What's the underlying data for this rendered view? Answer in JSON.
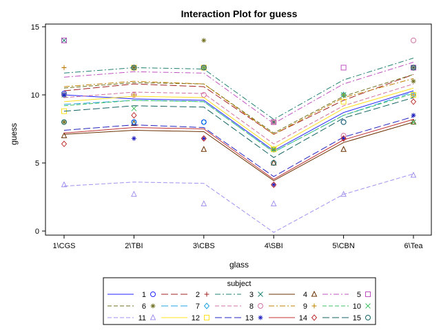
{
  "chart_data": {
    "type": "line",
    "title": "Interaction Plot for guess",
    "xlabel": "glass",
    "ylabel": "guess",
    "categories": [
      "1\\CGS",
      "2\\TBI",
      "3\\CBS",
      "4\\SBI",
      "5\\CBN",
      "6\\Tea"
    ],
    "yticks": [
      0,
      5,
      10,
      15
    ],
    "ylim": [
      -0.3,
      15.2
    ],
    "legend_title": "subject",
    "legend_position": "bottom",
    "series": [
      {
        "name": "1",
        "color": "#2020ff",
        "marker": "circle",
        "dash": "solid",
        "values": [
          10,
          9.7,
          9.6,
          5.9,
          8.7,
          10.3
        ],
        "points": [
          10.1,
          8,
          8,
          6,
          8,
          12
        ]
      },
      {
        "name": "2",
        "color": "#a02020",
        "marker": "plus",
        "dash": "longdash",
        "values": [
          10.3,
          10.8,
          10.6,
          7.1,
          9.6,
          11.5
        ],
        "points": [
          12,
          12,
          12,
          8,
          10,
          12
        ]
      },
      {
        "name": "3",
        "color": "#20806f",
        "marker": "x",
        "dash": "dashdot",
        "values": [
          11.6,
          12,
          11.9,
          8.2,
          11.1,
          12.7
        ],
        "points": [
          14,
          12,
          12,
          8,
          10,
          12
        ]
      },
      {
        "name": "4",
        "color": "#6b3000",
        "marker": "triangle",
        "dash": "solid",
        "values": [
          7.1,
          7.4,
          7.3,
          3.7,
          6.5,
          8
        ],
        "points": [
          7,
          7.9,
          6,
          5,
          6,
          8
        ]
      },
      {
        "name": "5",
        "color": "#c050c0",
        "marker": "square",
        "dash": "dashdot",
        "values": [
          11.3,
          11.7,
          11.6,
          7.9,
          10.8,
          12.4
        ],
        "points": [
          14,
          12,
          12,
          8,
          12,
          12
        ]
      },
      {
        "name": "6",
        "color": "#707020",
        "marker": "asterisk",
        "dash": "dash",
        "values": [
          10.5,
          10.9,
          10.8,
          7.2,
          9.9,
          11.5
        ],
        "points": [
          8,
          12,
          14,
          6,
          10,
          11
        ]
      },
      {
        "name": "7",
        "color": "#20a0e0",
        "marker": "diamond",
        "dash": "longdash",
        "values": [
          9.3,
          9.6,
          9.5,
          5.8,
          8.5,
          10.2
        ],
        "points": [
          10,
          8,
          8,
          6,
          10,
          10
        ]
      },
      {
        "name": "8",
        "color": "#d070a0",
        "marker": "circle",
        "dash": "dash",
        "values": [
          9.8,
          10.2,
          10.1,
          6.4,
          9.2,
          10.8
        ],
        "points": [
          10,
          10,
          10,
          8,
          7,
          14
        ]
      },
      {
        "name": "9",
        "color": "#c08000",
        "marker": "plus",
        "dash": "dashdot",
        "values": [
          10.6,
          11,
          10.8,
          7.1,
          9.8,
          11.2
        ],
        "points": [
          12,
          10,
          12,
          6,
          10,
          10
        ]
      },
      {
        "name": "10",
        "color": "#40c060",
        "marker": "x",
        "dash": "dash",
        "values": [
          9.2,
          9.6,
          9.5,
          5.8,
          8.5,
          10.1
        ],
        "points": [
          10,
          9,
          12,
          6,
          10,
          8
        ]
      },
      {
        "name": "11",
        "color": "#a090f0",
        "marker": "triangle",
        "dash": "dash",
        "values": [
          3.3,
          3.6,
          3.5,
          -0.1,
          2.7,
          4.2
        ],
        "points": [
          3.4,
          2.7,
          2,
          2,
          2.7,
          4.1
        ]
      },
      {
        "name": "12",
        "color": "#ffe020",
        "marker": "square",
        "dash": "solid",
        "values": [
          9.5,
          9.9,
          9.8,
          6.1,
          9,
          10.5
        ],
        "points": [
          8.8,
          12,
          12,
          6,
          9.5,
          10
        ]
      },
      {
        "name": "13",
        "color": "#2020c0",
        "marker": "asterisk",
        "dash": "longdash",
        "values": [
          7.4,
          7.8,
          7.6,
          4,
          6.9,
          8.4
        ],
        "points": [
          10,
          6.8,
          6.8,
          3.4,
          6.8,
          8.5
        ]
      },
      {
        "name": "14",
        "color": "#c03030",
        "marker": "diamond",
        "dash": "solid",
        "values": [
          7.2,
          7.6,
          7.5,
          3.8,
          6.7,
          8.2
        ],
        "points": [
          6.4,
          8.5,
          6.8,
          3.4,
          6.8,
          9.5
        ]
      },
      {
        "name": "15",
        "color": "#106060",
        "marker": "circle",
        "dash": "longdash",
        "values": [
          8.8,
          9.2,
          9.1,
          5.4,
          8.3,
          9.8
        ],
        "points": [
          8,
          12,
          12,
          5,
          8,
          12
        ]
      }
    ]
  }
}
